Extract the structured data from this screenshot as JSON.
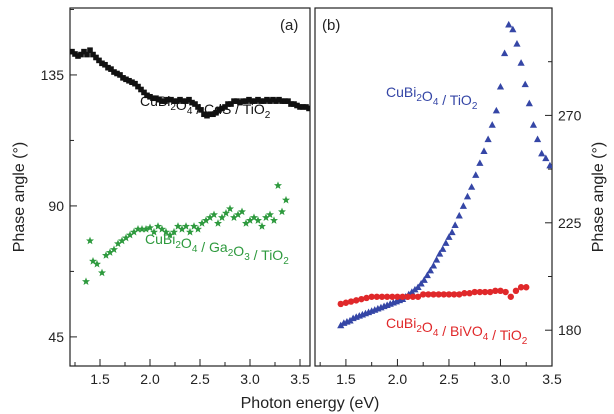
{
  "chart_data": [
    {
      "type": "scatter",
      "panel": "(a)",
      "xlabel": "Photon energy (eV)",
      "ylabel": "Phase angle (°)",
      "xlim": [
        1.2,
        3.6
      ],
      "ylim": [
        35,
        158
      ],
      "x_ticks": [
        1.5,
        2.0,
        2.5,
        3.0,
        3.5
      ],
      "x_tick_labels": [
        "1.5",
        "2.0",
        "2.5",
        "3.0",
        "3.5"
      ],
      "y_ticks": [
        45,
        90,
        135
      ],
      "y_tick_labels": [
        "45",
        "90",
        "135"
      ],
      "grid": false,
      "series": [
        {
          "label_parts": [
            [
              "CuBi",
              ""
            ],
            [
              "2",
              "sub"
            ],
            [
              "O",
              ""
            ],
            [
              "4",
              "sub"
            ],
            [
              " / CdS / TiO",
              ""
            ],
            [
              "2",
              "sub"
            ]
          ],
          "color": "#111111",
          "marker": "square",
          "x": [
            1.22,
            1.25,
            1.28,
            1.31,
            1.34,
            1.37,
            1.4,
            1.43,
            1.46,
            1.49,
            1.52,
            1.55,
            1.58,
            1.61,
            1.64,
            1.67,
            1.7,
            1.73,
            1.76,
            1.79,
            1.82,
            1.85,
            1.88,
            1.91,
            1.94,
            1.97,
            2.0,
            2.03,
            2.06,
            2.09,
            2.12,
            2.15,
            2.18,
            2.21,
            2.24,
            2.27,
            2.3,
            2.33,
            2.36,
            2.39,
            2.42,
            2.45,
            2.48,
            2.51,
            2.54,
            2.57,
            2.6,
            2.63,
            2.66,
            2.69,
            2.72,
            2.75,
            2.78,
            2.81,
            2.84,
            2.87,
            2.9,
            2.93,
            2.96,
            2.99,
            3.02,
            3.05,
            3.08,
            3.11,
            3.14,
            3.17,
            3.2,
            3.23,
            3.26,
            3.29,
            3.32,
            3.35,
            3.38,
            3.41,
            3.44,
            3.47,
            3.5,
            3.53,
            3.56,
            3.59
          ],
          "y": [
            143.0,
            142.2,
            141.5,
            142.0,
            143.0,
            142.0,
            143.5,
            142.0,
            141.0,
            140.0,
            139.0,
            138.5,
            137.5,
            137.0,
            136.0,
            135.5,
            135.0,
            134.0,
            133.5,
            133.0,
            132.5,
            132.0,
            131.0,
            130.0,
            129.0,
            128.0,
            127.5,
            127.0,
            127.0,
            126.5,
            126.0,
            126.0,
            126.5,
            126.5,
            126.0,
            126.0,
            126.5,
            126.0,
            126.0,
            126.5,
            125.5,
            125.0,
            124.0,
            123.0,
            121.5,
            121.0,
            121.5,
            121.5,
            122.0,
            123.0,
            123.5,
            124.0,
            125.0,
            125.0,
            126.0,
            126.0,
            125.5,
            126.0,
            126.0,
            126.5,
            126.0,
            126.0,
            126.5,
            126.0,
            126.0,
            126.5,
            126.0,
            126.5,
            126.0,
            126.5,
            126.0,
            126.0,
            126.0,
            125.0,
            125.0,
            124.5,
            124.0,
            124.0,
            124.0,
            123.5
          ]
        },
        {
          "label_parts": [
            [
              "CuBi",
              ""
            ],
            [
              "2",
              "sub"
            ],
            [
              "O",
              ""
            ],
            [
              "4",
              "sub"
            ],
            [
              " / Ga",
              ""
            ],
            [
              "2",
              "sub"
            ],
            [
              "O",
              ""
            ],
            [
              "3",
              "sub"
            ],
            [
              " / TiO",
              ""
            ],
            [
              "2",
              "sub"
            ]
          ],
          "color": "#2e9a3e",
          "marker": "star",
          "x": [
            1.36,
            1.4,
            1.43,
            1.47,
            1.52,
            1.56,
            1.6,
            1.64,
            1.68,
            1.72,
            1.76,
            1.8,
            1.84,
            1.88,
            1.92,
            1.96,
            2.0,
            2.04,
            2.08,
            2.12,
            2.16,
            2.2,
            2.24,
            2.28,
            2.32,
            2.36,
            2.4,
            2.44,
            2.48,
            2.52,
            2.56,
            2.6,
            2.64,
            2.68,
            2.72,
            2.76,
            2.8,
            2.84,
            2.88,
            2.92,
            2.96,
            3.0,
            3.04,
            3.08,
            3.12,
            3.16,
            3.2,
            3.24,
            3.28,
            3.32,
            3.36
          ],
          "y": [
            64.0,
            78.0,
            71.0,
            70.0,
            67.0,
            73.0,
            74.0,
            75.0,
            77.0,
            78.0,
            79.0,
            80.0,
            81.0,
            82.0,
            82.0,
            82.0,
            82.5,
            81.0,
            83.0,
            82.0,
            81.0,
            80.0,
            81.0,
            83.0,
            82.0,
            83.0,
            81.0,
            83.0,
            82.0,
            84.0,
            85.0,
            86.0,
            87.0,
            84.0,
            86.0,
            87.5,
            89.0,
            86.0,
            87.0,
            88.0,
            84.0,
            85.0,
            86.0,
            85.0,
            83.0,
            86.0,
            87.0,
            85.0,
            97.0,
            88.0,
            92.0
          ]
        }
      ]
    },
    {
      "type": "scatter",
      "panel": "(b)",
      "xlabel": "Photon energy (eV)",
      "ylabel": "Phase angle (°)",
      "xlim": [
        1.2,
        3.5
      ],
      "ylim": [
        165,
        315
      ],
      "x_ticks": [
        1.5,
        2.0,
        2.5,
        3.0,
        3.5
      ],
      "x_tick_labels": [
        "1.5",
        "2.0",
        "2.5",
        "3.0",
        "3.5"
      ],
      "y_ticks": [
        180,
        225,
        270
      ],
      "y_tick_labels": [
        "180",
        "225",
        "270"
      ],
      "grid": false,
      "series": [
        {
          "label_parts": [
            [
              "CuBi",
              ""
            ],
            [
              "2",
              "sub"
            ],
            [
              "O",
              ""
            ],
            [
              "4",
              "sub"
            ],
            [
              " / TiO",
              ""
            ],
            [
              "2",
              "sub"
            ]
          ],
          "color": "#3546a6",
          "marker": "triangle",
          "x": [
            1.45,
            1.48,
            1.51,
            1.54,
            1.57,
            1.6,
            1.63,
            1.66,
            1.69,
            1.72,
            1.75,
            1.78,
            1.81,
            1.84,
            1.87,
            1.9,
            1.93,
            1.96,
            1.99,
            2.02,
            2.05,
            2.08,
            2.11,
            2.14,
            2.17,
            2.2,
            2.23,
            2.26,
            2.29,
            2.32,
            2.35,
            2.38,
            2.41,
            2.44,
            2.47,
            2.5,
            2.53,
            2.56,
            2.6,
            2.64,
            2.68,
            2.72,
            2.76,
            2.8,
            2.84,
            2.88,
            2.92,
            2.96,
            3.0,
            3.04,
            3.08,
            3.12,
            3.16,
            3.2,
            3.24,
            3.28,
            3.32,
            3.36,
            3.4,
            3.44,
            3.48
          ],
          "y": [
            182.0,
            183.0,
            183.5,
            184.0,
            185.0,
            185.5,
            186.0,
            186.5,
            187.0,
            187.5,
            188.0,
            188.5,
            189.0,
            189.5,
            190.0,
            190.5,
            191.0,
            191.5,
            192.0,
            192.5,
            193.0,
            194.0,
            195.0,
            196.0,
            197.0,
            198.0,
            199.5,
            201.0,
            203.0,
            205.0,
            207.0,
            209.5,
            212.0,
            214.0,
            216.5,
            219.0,
            221.0,
            224.0,
            228.0,
            232.0,
            236.0,
            240.0,
            245.0,
            250.0,
            255.0,
            260.0,
            266.0,
            272.0,
            282.0,
            296.0,
            308.0,
            306.0,
            300.0,
            292.0,
            283.0,
            275.0,
            266.0,
            260.0,
            254.0,
            252.0,
            249.0
          ]
        },
        {
          "label_parts": [
            [
              "CuBi",
              ""
            ],
            [
              "2",
              "sub"
            ],
            [
              "O",
              ""
            ],
            [
              "4",
              "sub"
            ],
            [
              " / BiVO",
              ""
            ],
            [
              "4",
              "sub"
            ],
            [
              " / TiO",
              ""
            ],
            [
              "2",
              "sub"
            ]
          ],
          "color": "#e0282a",
          "marker": "circle",
          "x": [
            1.45,
            1.5,
            1.55,
            1.6,
            1.65,
            1.7,
            1.75,
            1.8,
            1.85,
            1.9,
            1.95,
            2.0,
            2.05,
            2.1,
            2.15,
            2.2,
            2.25,
            2.3,
            2.35,
            2.4,
            2.45,
            2.5,
            2.55,
            2.6,
            2.65,
            2.7,
            2.75,
            2.8,
            2.85,
            2.9,
            2.95,
            3.0,
            3.05,
            3.1,
            3.15,
            3.2,
            3.25
          ],
          "y": [
            191.0,
            191.5,
            192.0,
            192.5,
            193.0,
            193.5,
            194.0,
            194.0,
            194.0,
            194.0,
            194.0,
            194.0,
            194.0,
            194.0,
            194.0,
            194.0,
            195.0,
            195.0,
            195.0,
            195.0,
            195.0,
            195.0,
            195.0,
            195.0,
            195.5,
            195.5,
            196.0,
            196.0,
            196.0,
            196.0,
            196.5,
            196.5,
            196.0,
            194.0,
            196.5,
            198.0,
            198.0
          ]
        }
      ]
    }
  ]
}
